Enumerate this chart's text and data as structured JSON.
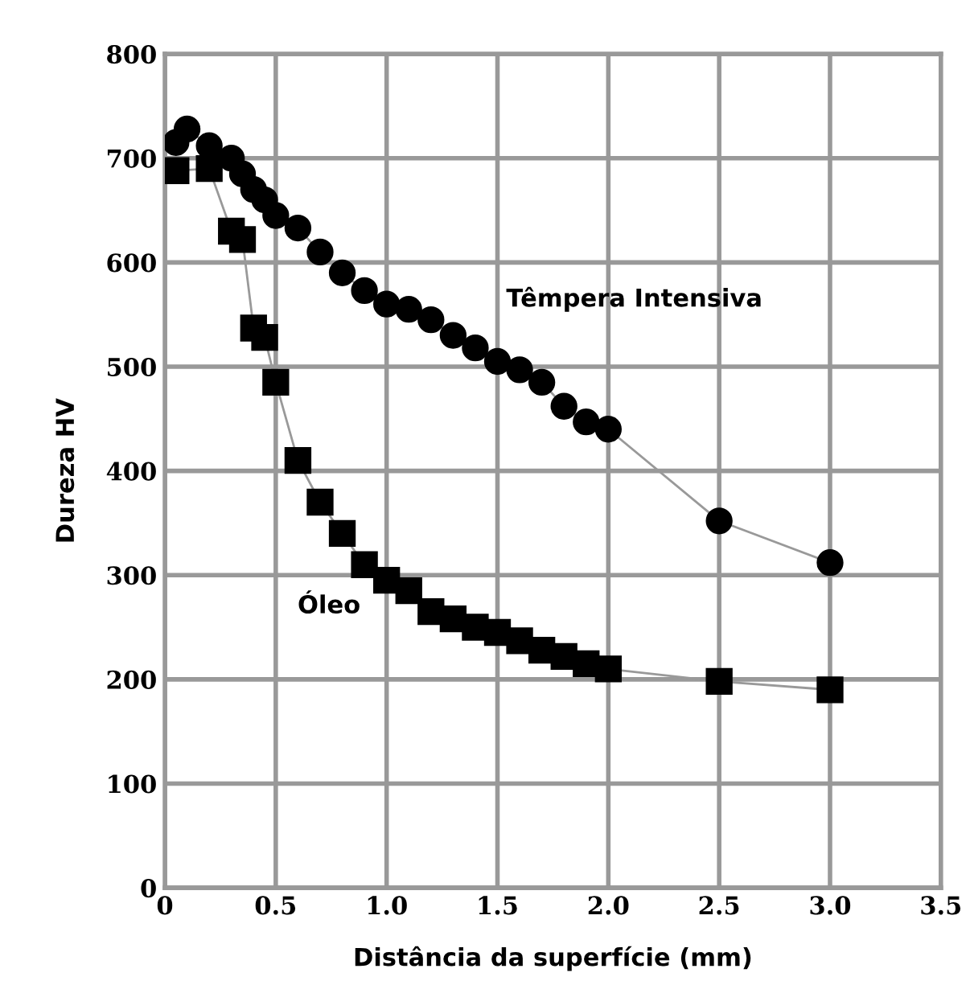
{
  "chart_data": {
    "type": "line",
    "xlabel": "Distância da superfície (mm)",
    "ylabel": "Dureza HV",
    "xlim": [
      0,
      3.5
    ],
    "ylim": [
      0,
      800
    ],
    "xticks": [
      0,
      0.5,
      {
        "value": 1,
        "label": "1.0"
      },
      1.5,
      {
        "value": 2,
        "label": "2.0"
      },
      2.5,
      {
        "value": 3,
        "label": "3.0"
      },
      3.5
    ],
    "yticks": [
      0,
      100,
      200,
      300,
      400,
      500,
      600,
      700,
      800
    ],
    "grid": true,
    "legend": false,
    "series": [
      {
        "name": "Têmpera Intensiva",
        "color": "#000000",
        "marker": "circle",
        "x": [
          0.05,
          0.1,
          0.2,
          0.3,
          0.35,
          0.4,
          0.45,
          0.5,
          0.6,
          0.7,
          0.8,
          0.9,
          1.0,
          1.1,
          1.2,
          1.3,
          1.4,
          1.5,
          1.6,
          1.7,
          1.8,
          1.9,
          2.0,
          2.5,
          3.0
        ],
        "values": [
          715,
          728,
          712,
          700,
          685,
          670,
          660,
          645,
          633,
          610,
          590,
          573,
          560,
          555,
          545,
          530,
          518,
          505,
          497,
          485,
          462,
          447,
          440,
          352,
          312
        ]
      },
      {
        "name": "Óleo",
        "color": "#000000",
        "marker": "square",
        "x": [
          0.05,
          0.2,
          0.3,
          0.35,
          0.4,
          0.45,
          0.5,
          0.6,
          0.7,
          0.8,
          0.9,
          1.0,
          1.1,
          1.2,
          1.3,
          1.4,
          1.5,
          1.6,
          1.7,
          1.8,
          1.9,
          2.0,
          2.5,
          3.0
        ],
        "values": [
          688,
          690,
          630,
          622,
          537,
          528,
          485,
          410,
          370,
          340,
          310,
          295,
          285,
          265,
          258,
          250,
          245,
          237,
          228,
          222,
          215,
          210,
          198,
          190
        ]
      }
    ]
  }
}
